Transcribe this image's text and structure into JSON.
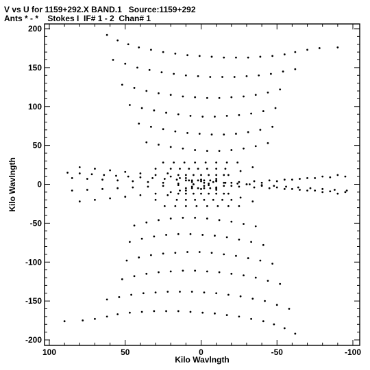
{
  "header": {
    "title_line1": "V vs U for 1159+292.X BAND.1   Source:1159+292",
    "title_line2": "Ants * - *    Stokes I  IF# 1 - 2  Chan# 1"
  },
  "chart_data": {
    "type": "scatter",
    "title": "V vs U for 1159+292.X BAND.1   Source:1159+292",
    "subtitle": "Ants * - *    Stokes I  IF# 1 - 2  Chan# 1",
    "xlabel": "Kilo Wavlngth",
    "ylabel": "Kilo Wavlngth",
    "xlim": [
      100,
      -100
    ],
    "ylim": [
      -200,
      200
    ],
    "x_reversed": true,
    "x_ticks": [
      100,
      50,
      0,
      -50,
      -100
    ],
    "y_ticks": [
      200,
      150,
      100,
      50,
      0,
      -50,
      -100,
      -150,
      -200
    ],
    "x_tick_labels": [
      "100",
      "50",
      "0",
      "-50",
      "-100"
    ],
    "y_tick_labels": [
      "200",
      "150",
      "100",
      "50",
      "0",
      "-50",
      "-100",
      "-150",
      "-200"
    ],
    "grid": false,
    "marker": "dot",
    "marker_color": "#000000",
    "series": [
      {
        "x": [
          62,
          55,
          48,
          41,
          33,
          25,
          17,
          9,
          1,
          -7,
          -15,
          -23,
          -31,
          -39,
          -47,
          -55,
          -62,
          -70,
          -78,
          -90,
          -62,
          -55,
          -48,
          -41,
          -33,
          -25,
          -17,
          -9,
          -1,
          7,
          15,
          23,
          31,
          39,
          47,
          55,
          62,
          70,
          78,
          90,
          58,
          50,
          42,
          34,
          26,
          18,
          10,
          2,
          -6,
          -14,
          -22,
          -30,
          -38,
          -46,
          -54,
          -62,
          -58,
          -50,
          -42,
          -34,
          -26,
          -18,
          -10,
          -2,
          6,
          14,
          22,
          30,
          38,
          46,
          54,
          62,
          52,
          44,
          36,
          28,
          20,
          12,
          4,
          -4,
          -12,
          -20,
          -28,
          -36,
          -44,
          -52,
          -52,
          -44,
          -36,
          -28,
          -20,
          -12,
          -4,
          4,
          12,
          20,
          28,
          36,
          44,
          52,
          47,
          39,
          31,
          23,
          15,
          7,
          -1,
          -9,
          -17,
          -25,
          -33,
          -41,
          -49,
          -47,
          -39,
          -31,
          -23,
          -15,
          -7,
          1,
          9,
          17,
          25,
          33,
          41,
          49,
          41,
          33,
          25,
          17,
          9,
          1,
          -7,
          -15,
          -23,
          -31,
          -39,
          -47,
          -41,
          -33,
          -25,
          -17,
          -9,
          -1,
          7,
          15,
          23,
          31,
          39,
          47,
          36,
          28,
          20,
          12,
          4,
          -4,
          -12,
          -20,
          -28,
          -36,
          -44,
          -36,
          -28,
          -20,
          -12,
          -4,
          4,
          12,
          20,
          28,
          36,
          44,
          88,
          80,
          72,
          64,
          56,
          48,
          40,
          32,
          24,
          16,
          8,
          0,
          -8,
          -16,
          -24,
          -32,
          -40,
          -48,
          -56,
          -64,
          -72,
          -80,
          -88,
          -96,
          85,
          75,
          65,
          55,
          45,
          35,
          25,
          15,
          5,
          -5,
          -15,
          -25,
          -35,
          -45,
          -55,
          -65,
          -75,
          -85,
          -95,
          85,
          75,
          65,
          55,
          45,
          35,
          25,
          15,
          5,
          -5,
          -15,
          -25,
          -35,
          -45,
          -55,
          -65,
          -75,
          -85,
          -95,
          80,
          70,
          60,
          50,
          40,
          30,
          20,
          10,
          0,
          -10,
          -20,
          -30,
          -40,
          -50,
          -60,
          -70,
          -80,
          -90,
          80,
          70,
          60,
          50,
          40,
          30,
          20,
          10,
          0,
          -10,
          -20,
          -30,
          -40,
          -50,
          -60,
          -70,
          -80,
          -90,
          30,
          22,
          14,
          6,
          -2,
          -10,
          -18,
          -26,
          -34,
          30,
          22,
          14,
          6,
          -2,
          -10,
          -18,
          -26,
          -34,
          25,
          18,
          11,
          4,
          -3,
          -10,
          -17,
          -24,
          -25,
          -18,
          -11,
          -4,
          3,
          10,
          17,
          24,
          20,
          14,
          8,
          2,
          -4,
          -10,
          -16,
          -20,
          -14,
          -8,
          -2,
          4,
          10,
          16,
          15,
          10,
          5,
          0,
          -5,
          -10,
          -15,
          -15,
          -10,
          -5,
          0,
          5,
          10,
          15,
          10,
          6,
          2,
          -2,
          -6,
          -10,
          -10,
          -6,
          -2,
          2,
          6,
          10
        ],
        "y": [
          192,
          185,
          180,
          176,
          173,
          170,
          168,
          166,
          165,
          164,
          163,
          163,
          163,
          164,
          165,
          167,
          170,
          173,
          175,
          176,
          -192,
          -185,
          -180,
          -176,
          -173,
          -170,
          -168,
          -166,
          -165,
          -164,
          -163,
          -163,
          -163,
          -164,
          -165,
          -167,
          -170,
          -173,
          -175,
          -176,
          160,
          155,
          150,
          147,
          144,
          142,
          140,
          139,
          138,
          138,
          138,
          139,
          140,
          142,
          145,
          148,
          -160,
          -155,
          -150,
          -147,
          -144,
          -142,
          -140,
          -139,
          -138,
          -138,
          -138,
          -139,
          -140,
          -142,
          -145,
          -148,
          128,
          124,
          120,
          117,
          115,
          113,
          112,
          111,
          111,
          112,
          113,
          115,
          118,
          122,
          -128,
          -124,
          -120,
          -117,
          -115,
          -113,
          -112,
          -111,
          -111,
          -112,
          -113,
          -115,
          -118,
          -122,
          102,
          98,
          95,
          92,
          90,
          88,
          87,
          87,
          88,
          89,
          91,
          94,
          98,
          -102,
          -98,
          -95,
          -92,
          -90,
          -88,
          -87,
          -87,
          -88,
          -89,
          -91,
          -94,
          -98,
          78,
          74,
          71,
          68,
          66,
          65,
          64,
          64,
          65,
          67,
          70,
          74,
          -78,
          -74,
          -71,
          -68,
          -66,
          -65,
          -64,
          -64,
          -65,
          -67,
          -70,
          -74,
          54,
          51,
          48,
          46,
          44,
          43,
          43,
          44,
          46,
          49,
          53,
          -54,
          -51,
          -48,
          -46,
          -44,
          -43,
          -43,
          -44,
          -46,
          -49,
          -53,
          15,
          14,
          13,
          12,
          11,
          10,
          9,
          8,
          7,
          6,
          5,
          4,
          3,
          2,
          1,
          0,
          -1,
          -2,
          -3,
          -4,
          -5,
          -6,
          -7,
          -8,
          8,
          7,
          6,
          5,
          4,
          3,
          2,
          1,
          0,
          -1,
          -2,
          -3,
          -4,
          -5,
          -6,
          -7,
          -8,
          -9,
          -10,
          -8,
          -7,
          -6,
          -5,
          -4,
          -3,
          -2,
          -1,
          0,
          1,
          2,
          3,
          4,
          5,
          6,
          7,
          8,
          9,
          10,
          22,
          20,
          18,
          16,
          14,
          12,
          10,
          8,
          6,
          4,
          2,
          0,
          -2,
          -4,
          -6,
          -8,
          -10,
          -12,
          -22,
          -20,
          -18,
          -16,
          -14,
          -12,
          -10,
          -8,
          -6,
          -4,
          -2,
          0,
          2,
          4,
          6,
          8,
          10,
          12,
          20,
          14,
          8,
          3,
          -2,
          -7,
          -12,
          -17,
          -22,
          -20,
          -14,
          -8,
          -3,
          2,
          7,
          12,
          17,
          22,
          28,
          28,
          28,
          28,
          28,
          28,
          28,
          28,
          -28,
          -28,
          -28,
          -28,
          -28,
          -28,
          -28,
          -28,
          20,
          20,
          20,
          20,
          20,
          20,
          20,
          -20,
          -20,
          -20,
          -20,
          -20,
          -20,
          -20,
          12,
          12,
          12,
          12,
          12,
          12,
          12,
          -12,
          -12,
          -12,
          -12,
          -12,
          -12,
          -12,
          5,
          5,
          5,
          5,
          5,
          5,
          -5,
          -5,
          -5,
          -5,
          -5,
          -5
        ]
      }
    ]
  }
}
